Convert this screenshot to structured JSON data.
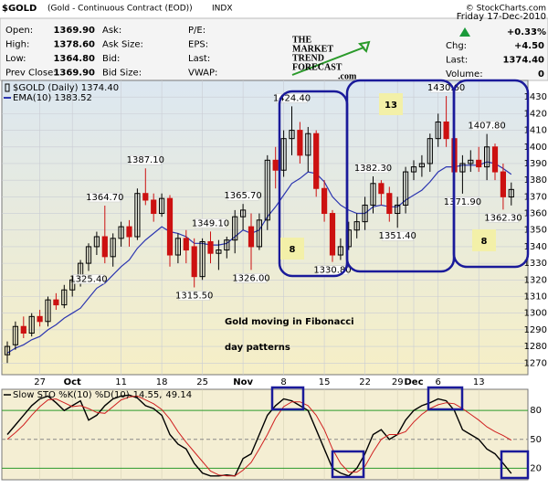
{
  "header": {
    "symbol": "$GOLD",
    "name": "(Gold - Continuous Contract (EOD))",
    "exchange": "INDX",
    "copyright": "© StockCharts.com",
    "date": "Friday  17-Dec-2010",
    "change_pct": "+0.33%",
    "left": [
      [
        "Open:",
        "1369.90"
      ],
      [
        "High:",
        "1378.60"
      ],
      [
        "Low:",
        "1364.80"
      ],
      [
        "Prev Close:",
        "1369.90"
      ]
    ],
    "middle": [
      "Ask:",
      "Ask Size:",
      "Bid:",
      "Bid Size:"
    ],
    "middle2": [
      "P/E:",
      "EPS:",
      "Last:",
      "VWAP:"
    ],
    "right": [
      [
        "Chg:",
        "+4.50"
      ],
      [
        "Last:",
        "1374.40"
      ],
      [
        "Volume:",
        "0"
      ]
    ],
    "logo": [
      "THE",
      "MARKET",
      "TREND",
      "FORECAST",
      ".com"
    ]
  },
  "chart_data": [
    {
      "type": "candlestick",
      "name": "$GOLD (Daily) 1374.40",
      "up_color": "#000000",
      "down_color": "#cc1111",
      "categories": [
        null,
        null,
        null,
        null,
        "27",
        null,
        null,
        null,
        "Oct",
        null,
        null,
        null,
        null,
        null,
        "11",
        null,
        null,
        null,
        null,
        "18",
        null,
        null,
        null,
        null,
        "25",
        null,
        null,
        null,
        null,
        "Nov",
        null,
        null,
        null,
        null,
        "8",
        null,
        null,
        null,
        null,
        "15",
        null,
        null,
        null,
        null,
        "22",
        null,
        null,
        null,
        "29",
        null,
        "Dec",
        null,
        null,
        "6",
        null,
        null,
        null,
        null,
        "13",
        null,
        null,
        null,
        null
      ],
      "ohlc": [
        [
          1275,
          1283,
          1270,
          1280
        ],
        [
          1281,
          1295,
          1278,
          1292
        ],
        [
          1292,
          1298,
          1285,
          1288
        ],
        [
          1288,
          1300,
          1286,
          1298
        ],
        [
          1298,
          1302,
          1292,
          1295
        ],
        [
          1295,
          1310,
          1292,
          1308
        ],
        [
          1308,
          1312,
          1302,
          1305
        ],
        [
          1305,
          1317,
          1303,
          1314
        ],
        [
          1314,
          1322,
          1310,
          1320
        ],
        [
          1320,
          1332,
          1316,
          1330
        ],
        [
          1330,
          1342,
          1325.4,
          1340
        ],
        [
          1340,
          1349,
          1335,
          1346
        ],
        [
          1346,
          1364.7,
          1330,
          1334
        ],
        [
          1334,
          1348,
          1328,
          1345
        ],
        [
          1345,
          1355,
          1340,
          1352
        ],
        [
          1352,
          1356,
          1340,
          1346
        ],
        [
          1346,
          1375,
          1344,
          1372
        ],
        [
          1372,
          1387.1,
          1365,
          1368
        ],
        [
          1368,
          1372,
          1355,
          1360
        ],
        [
          1360,
          1372,
          1358,
          1369
        ],
        [
          1369,
          1371,
          1328,
          1335
        ],
        [
          1335,
          1348,
          1330,
          1345
        ],
        [
          1345,
          1350,
          1330,
          1338
        ],
        [
          1340,
          1345,
          1315.5,
          1322
        ],
        [
          1322,
          1345,
          1320,
          1343
        ],
        [
          1343,
          1349.1,
          1330,
          1336
        ],
        [
          1336,
          1344,
          1326,
          1338
        ],
        [
          1338,
          1346,
          1333,
          1344
        ],
        [
          1344,
          1362,
          1336,
          1358
        ],
        [
          1358,
          1365.7,
          1350,
          1362
        ],
        [
          1352,
          1360,
          1326,
          1340
        ],
        [
          1340,
          1360,
          1338,
          1356
        ],
        [
          1356,
          1395,
          1350,
          1392
        ],
        [
          1392,
          1400,
          1375,
          1386
        ],
        [
          1386,
          1410,
          1382,
          1405
        ],
        [
          1405,
          1424.4,
          1395,
          1410
        ],
        [
          1410,
          1415,
          1390,
          1395
        ],
        [
          1395,
          1412,
          1385,
          1408
        ],
        [
          1408,
          1410,
          1370,
          1375
        ],
        [
          1375,
          1380,
          1355,
          1360
        ],
        [
          1360,
          1362,
          1330.8,
          1335
        ],
        [
          1335,
          1345,
          1332,
          1340
        ],
        [
          1340,
          1355,
          1338,
          1350
        ],
        [
          1350,
          1360,
          1345,
          1355
        ],
        [
          1355,
          1370,
          1350,
          1365
        ],
        [
          1365,
          1382.3,
          1360,
          1378
        ],
        [
          1378,
          1380,
          1365,
          1372
        ],
        [
          1372,
          1376,
          1355,
          1360
        ],
        [
          1360,
          1370,
          1351.4,
          1365
        ],
        [
          1365,
          1388,
          1360,
          1385
        ],
        [
          1385,
          1392,
          1380,
          1388
        ],
        [
          1388,
          1395,
          1382,
          1390
        ],
        [
          1390,
          1408,
          1385,
          1405
        ],
        [
          1405,
          1420,
          1400,
          1415
        ],
        [
          1415,
          1430.6,
          1400,
          1405
        ],
        [
          1405,
          1410,
          1380,
          1385
        ],
        [
          1385,
          1395,
          1371.9,
          1390
        ],
        [
          1390,
          1398,
          1385,
          1392
        ],
        [
          1392,
          1400,
          1385,
          1388
        ],
        [
          1388,
          1407.8,
          1380,
          1400
        ],
        [
          1400,
          1402,
          1380,
          1385
        ],
        [
          1385,
          1390,
          1362.3,
          1370
        ],
        [
          1369.9,
          1378.6,
          1364.8,
          1374.4
        ]
      ],
      "value_labels": [
        null,
        null,
        null,
        null,
        null,
        null,
        null,
        null,
        null,
        null,
        "1325.40",
        null,
        "1364.70",
        null,
        null,
        null,
        null,
        "1387.10",
        null,
        null,
        null,
        null,
        null,
        "1315.50",
        null,
        "1349.10",
        null,
        null,
        null,
        "1365.70",
        "1326.00",
        null,
        null,
        null,
        null,
        "1424.40",
        null,
        null,
        null,
        null,
        "1330.80",
        null,
        null,
        null,
        null,
        "1382.30",
        null,
        null,
        "1351.40",
        null,
        null,
        null,
        null,
        null,
        "1430.60",
        null,
        "1371.90",
        null,
        null,
        "1407.80",
        null,
        "1362.30",
        null
      ],
      "ema": {
        "name": "EMA(10) 1383.52",
        "color": "#2b35b0",
        "values": [
          1276,
          1279,
          1281,
          1284,
          1286,
          1290,
          1293,
          1297,
          1300,
          1303,
          1309,
          1315,
          1318,
          1323,
          1328,
          1332,
          1339,
          1344,
          1348,
          1352,
          1349,
          1348,
          1346,
          1342,
          1342,
          1341,
          1341,
          1342,
          1346,
          1350,
          1348,
          1350,
          1358,
          1364,
          1371,
          1378,
          1381,
          1385,
          1384,
          1379,
          1370,
          1365,
          1362,
          1360,
          1360,
          1364,
          1365,
          1364,
          1364,
          1368,
          1371,
          1374,
          1379,
          1385,
          1388,
          1388,
          1389,
          1389,
          1389,
          1391,
          1390,
          1387,
          1383.52
        ]
      },
      "ylim": [
        1263,
        1440
      ],
      "yticks": [
        1270,
        1280,
        1290,
        1300,
        1310,
        1320,
        1330,
        1340,
        1350,
        1360,
        1370,
        1380,
        1390,
        1400,
        1410,
        1420,
        1430
      ],
      "grid": true,
      "fib_counts": [
        "8",
        "13",
        "8"
      ],
      "note": [
        "Gold moving in Fibonacci",
        "day patterns"
      ]
    },
    {
      "type": "line",
      "title": "Slow STO %K(10) %D(10)",
      "series": [
        {
          "name": "14.55,",
          "color": "#000000",
          "values": [
            55,
            65,
            75,
            85,
            92,
            95,
            88,
            80,
            85,
            90,
            70,
            75,
            85,
            92,
            95,
            96,
            93,
            85,
            82,
            75,
            55,
            45,
            40,
            25,
            15,
            12,
            12,
            13,
            12,
            30,
            35,
            55,
            75,
            85,
            92,
            90,
            85,
            80,
            60,
            40,
            20,
            15,
            12,
            20,
            35,
            55,
            60,
            50,
            55,
            70,
            80,
            85,
            88,
            92,
            90,
            80,
            60,
            55,
            50,
            40,
            35,
            25,
            14.55
          ]
        },
        {
          "name": "49.14",
          "color": "#d02020",
          "values": [
            50,
            57,
            65,
            75,
            84,
            91,
            92,
            88,
            84,
            85,
            82,
            78,
            77,
            84,
            91,
            94,
            95,
            91,
            87,
            81,
            71,
            58,
            47,
            37,
            27,
            17,
            13,
            12,
            12,
            18,
            26,
            40,
            55,
            72,
            84,
            89,
            89,
            85,
            75,
            60,
            40,
            25,
            16,
            16,
            22,
            37,
            50,
            55,
            55,
            58,
            68,
            76,
            82,
            86,
            88,
            87,
            82,
            76,
            70,
            63,
            58,
            54,
            49.14
          ]
        }
      ],
      "ylim": [
        8,
        102
      ],
      "yticks": [
        20,
        50,
        80
      ],
      "tick_line_colors": [
        "#2a9a2a",
        "#888888",
        "#2a9a2a"
      ]
    }
  ]
}
